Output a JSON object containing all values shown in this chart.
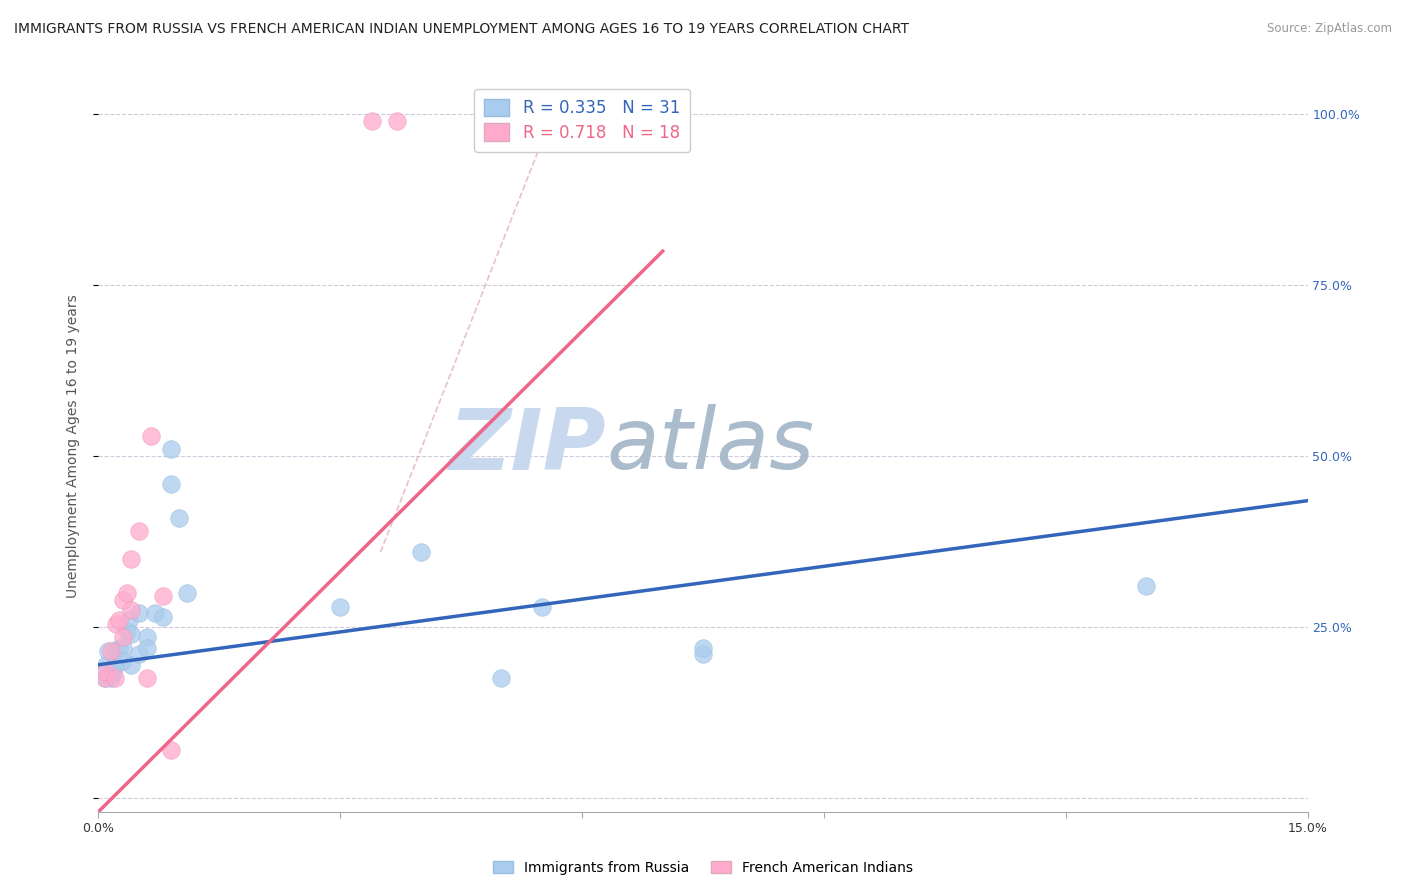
{
  "title": "IMMIGRANTS FROM RUSSIA VS FRENCH AMERICAN INDIAN UNEMPLOYMENT AMONG AGES 16 TO 19 YEARS CORRELATION CHART",
  "source": "Source: ZipAtlas.com",
  "ylabel": "Unemployment Among Ages 16 to 19 years",
  "xlabel": "Immigrants from Russia",
  "xlabel2": "French American Indians",
  "xlim": [
    0.0,
    0.15
  ],
  "ylim": [
    -0.02,
    1.05
  ],
  "R_blue": 0.335,
  "N_blue": 31,
  "R_pink": 0.718,
  "N_pink": 18,
  "blue_color": "#AACCEE",
  "pink_color": "#FFAACC",
  "blue_line_color": "#3366BB",
  "pink_line_color": "#EE6688",
  "blue_scatter": [
    [
      0.0008,
      0.175
    ],
    [
      0.001,
      0.195
    ],
    [
      0.0012,
      0.215
    ],
    [
      0.0015,
      0.175
    ],
    [
      0.0018,
      0.185
    ],
    [
      0.002,
      0.195
    ],
    [
      0.002,
      0.215
    ],
    [
      0.0025,
      0.22
    ],
    [
      0.003,
      0.22
    ],
    [
      0.003,
      0.2
    ],
    [
      0.0035,
      0.245
    ],
    [
      0.0038,
      0.26
    ],
    [
      0.004,
      0.24
    ],
    [
      0.004,
      0.195
    ],
    [
      0.005,
      0.21
    ],
    [
      0.005,
      0.27
    ],
    [
      0.006,
      0.235
    ],
    [
      0.006,
      0.22
    ],
    [
      0.007,
      0.27
    ],
    [
      0.008,
      0.265
    ],
    [
      0.009,
      0.51
    ],
    [
      0.009,
      0.46
    ],
    [
      0.01,
      0.41
    ],
    [
      0.011,
      0.3
    ],
    [
      0.03,
      0.28
    ],
    [
      0.04,
      0.36
    ],
    [
      0.05,
      0.175
    ],
    [
      0.055,
      0.28
    ],
    [
      0.075,
      0.21
    ],
    [
      0.075,
      0.22
    ],
    [
      0.13,
      0.31
    ]
  ],
  "pink_scatter": [
    [
      0.0008,
      0.175
    ],
    [
      0.001,
      0.185
    ],
    [
      0.0015,
      0.215
    ],
    [
      0.002,
      0.175
    ],
    [
      0.0022,
      0.255
    ],
    [
      0.0025,
      0.26
    ],
    [
      0.003,
      0.235
    ],
    [
      0.003,
      0.29
    ],
    [
      0.0035,
      0.3
    ],
    [
      0.004,
      0.35
    ],
    [
      0.004,
      0.275
    ],
    [
      0.005,
      0.39
    ],
    [
      0.006,
      0.175
    ],
    [
      0.0065,
      0.53
    ],
    [
      0.008,
      0.295
    ],
    [
      0.009,
      0.07
    ],
    [
      0.034,
      0.99
    ],
    [
      0.037,
      0.99
    ]
  ],
  "blue_trend_x": [
    0.0,
    0.15
  ],
  "blue_trend_y": [
    0.195,
    0.435
  ],
  "pink_trend_x": [
    0.0,
    0.07
  ],
  "pink_trend_y": [
    -0.02,
    0.8
  ],
  "dash_line_x": [
    0.035,
    0.057
  ],
  "dash_line_y": [
    0.36,
    1.02
  ],
  "watermark_zip": "ZIP",
  "watermark_atlas": "atlas",
  "watermark_color": "#C8D4E8",
  "background_color": "#FFFFFF",
  "grid_color": "#CCCCDD",
  "title_fontsize": 10,
  "axis_label_fontsize": 10,
  "tick_fontsize": 9,
  "legend_fontsize": 12
}
